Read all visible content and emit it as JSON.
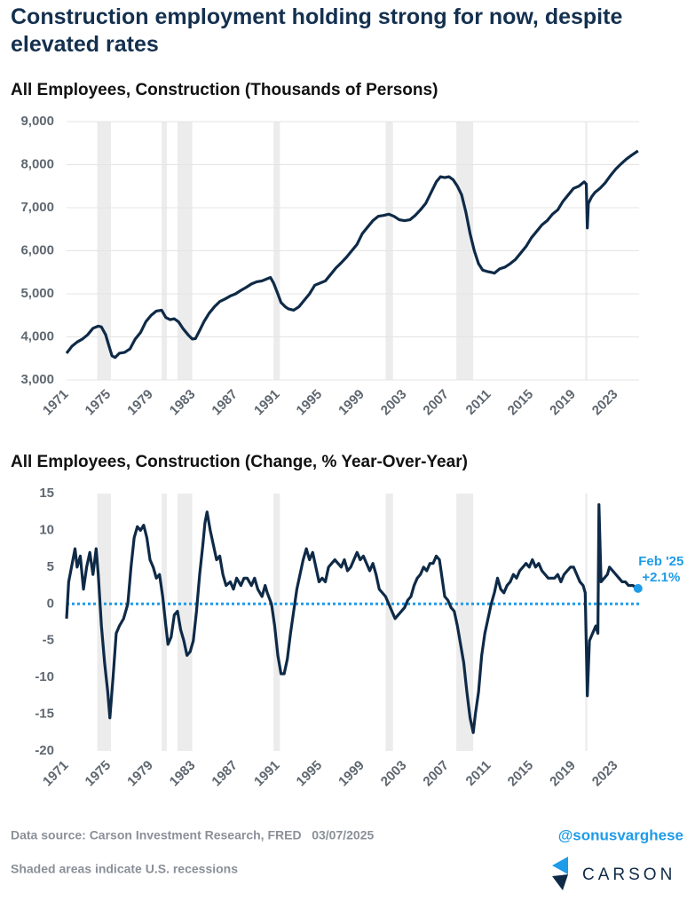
{
  "header": {
    "title": "Construction employment holding strong for now, despite elevated rates"
  },
  "chart_data": [
    {
      "type": "line",
      "title": "All Employees, Construction (Thousands of Persons)",
      "xlim": [
        1971,
        2025.2
      ],
      "xticks": [
        1971,
        1975,
        1979,
        1983,
        1987,
        1991,
        1995,
        1999,
        2003,
        2007,
        2011,
        2015,
        2019,
        2023
      ],
      "ylim": [
        3000,
        9000
      ],
      "yticks": [
        {
          "value": 3000,
          "label": "3,000"
        },
        {
          "value": 4000,
          "label": "4,000"
        },
        {
          "value": 5000,
          "label": "5,000"
        },
        {
          "value": 6000,
          "label": "6,000"
        },
        {
          "value": 7000,
          "label": "7,000"
        },
        {
          "value": 8000,
          "label": "8,000"
        },
        {
          "value": 9000,
          "label": "9,000"
        }
      ],
      "grid": true,
      "color": "#0e2a47",
      "recessions": [
        [
          1973.9,
          1975.2
        ],
        [
          1980.0,
          1980.5
        ],
        [
          1981.5,
          1982.9
        ],
        [
          1990.6,
          1991.2
        ],
        [
          2001.2,
          2001.9
        ],
        [
          2007.9,
          2009.5
        ],
        [
          2020.1,
          2020.3
        ]
      ],
      "x": [
        1971.0,
        1971.5,
        1972.0,
        1972.5,
        1973.0,
        1973.5,
        1974.0,
        1974.3,
        1974.7,
        1975.0,
        1975.3,
        1975.6,
        1976.0,
        1976.5,
        1977.0,
        1977.5,
        1978.0,
        1978.5,
        1979.0,
        1979.5,
        1980.0,
        1980.4,
        1980.8,
        1981.2,
        1981.6,
        1982.0,
        1982.5,
        1982.9,
        1983.2,
        1983.6,
        1984.0,
        1984.5,
        1985.0,
        1985.5,
        1986.0,
        1986.5,
        1987.0,
        1987.5,
        1988.0,
        1988.5,
        1989.0,
        1989.5,
        1990.0,
        1990.3,
        1990.6,
        1991.0,
        1991.3,
        1991.7,
        1992.0,
        1992.5,
        1993.0,
        1993.5,
        1994.0,
        1994.5,
        1995.0,
        1995.5,
        1996.0,
        1996.5,
        1997.0,
        1997.5,
        1998.0,
        1998.5,
        1999.0,
        1999.5,
        2000.0,
        2000.5,
        2001.0,
        2001.5,
        2002.0,
        2002.5,
        2003.0,
        2003.5,
        2004.0,
        2004.5,
        2005.0,
        2005.5,
        2006.0,
        2006.4,
        2006.8,
        2007.2,
        2007.6,
        2008.0,
        2008.4,
        2008.8,
        2009.2,
        2009.6,
        2010.0,
        2010.4,
        2010.8,
        2011.2,
        2011.5,
        2012.0,
        2012.5,
        2013.0,
        2013.5,
        2014.0,
        2014.5,
        2015.0,
        2015.5,
        2016.0,
        2016.5,
        2017.0,
        2017.5,
        2018.0,
        2018.5,
        2019.0,
        2019.5,
        2020.0,
        2020.2,
        2020.3,
        2020.4,
        2020.7,
        2021.0,
        2021.5,
        2022.0,
        2022.5,
        2023.0,
        2023.5,
        2024.0,
        2024.5,
        2025.1
      ],
      "values": [
        3620,
        3780,
        3880,
        3950,
        4050,
        4200,
        4250,
        4230,
        4050,
        3800,
        3560,
        3520,
        3620,
        3640,
        3720,
        3950,
        4100,
        4350,
        4500,
        4600,
        4620,
        4450,
        4400,
        4420,
        4350,
        4200,
        4050,
        3950,
        3960,
        4150,
        4350,
        4550,
        4700,
        4820,
        4880,
        4950,
        5000,
        5080,
        5150,
        5230,
        5280,
        5300,
        5350,
        5380,
        5250,
        5000,
        4800,
        4700,
        4650,
        4620,
        4700,
        4850,
        5000,
        5200,
        5250,
        5300,
        5450,
        5600,
        5720,
        5850,
        6000,
        6150,
        6400,
        6550,
        6700,
        6800,
        6820,
        6850,
        6800,
        6720,
        6700,
        6720,
        6820,
        6950,
        7100,
        7350,
        7600,
        7720,
        7700,
        7720,
        7650,
        7500,
        7300,
        6900,
        6400,
        6000,
        5700,
        5550,
        5520,
        5500,
        5480,
        5580,
        5620,
        5700,
        5800,
        5950,
        6100,
        6300,
        6450,
        6600,
        6700,
        6850,
        6950,
        7150,
        7300,
        7450,
        7500,
        7600,
        7550,
        6530,
        7100,
        7250,
        7350,
        7450,
        7580,
        7750,
        7900,
        8020,
        8130,
        8220,
        8320
      ]
    },
    {
      "type": "line",
      "title": "All Employees, Construction (Change, % Year-Over-Year)",
      "xlim": [
        1971,
        2025.2
      ],
      "xticks": [
        1971,
        1975,
        1979,
        1983,
        1987,
        1991,
        1995,
        1999,
        2003,
        2007,
        2011,
        2015,
        2019,
        2023
      ],
      "ylim": [
        -20,
        15
      ],
      "yticks": [
        -20,
        -15,
        -10,
        -5,
        0,
        5,
        10,
        15
      ],
      "grid": false,
      "color": "#0e2a47",
      "zero_line": {
        "value": 0,
        "color": "#1e9be9"
      },
      "recessions": [
        [
          1973.9,
          1975.2
        ],
        [
          1980.0,
          1980.5
        ],
        [
          1981.5,
          1982.9
        ],
        [
          1990.6,
          1991.2
        ],
        [
          2001.2,
          2001.9
        ],
        [
          2007.9,
          2009.5
        ],
        [
          2020.1,
          2020.3
        ]
      ],
      "annotation": {
        "label": "Feb '25",
        "value_label": "+2.1%",
        "color": "#1e9be9"
      },
      "x": [
        1971.0,
        1971.2,
        1971.6,
        1971.8,
        1972.0,
        1972.3,
        1972.6,
        1972.9,
        1973.2,
        1973.5,
        1973.8,
        1974.0,
        1974.3,
        1974.6,
        1974.9,
        1975.1,
        1975.4,
        1975.7,
        1976.0,
        1976.4,
        1976.8,
        1977.1,
        1977.4,
        1977.7,
        1978.0,
        1978.3,
        1978.6,
        1978.9,
        1979.2,
        1979.5,
        1979.8,
        1980.1,
        1980.4,
        1980.6,
        1980.9,
        1981.2,
        1981.5,
        1981.8,
        1982.1,
        1982.4,
        1982.7,
        1983.0,
        1983.3,
        1983.6,
        1983.9,
        1984.1,
        1984.3,
        1984.6,
        1984.9,
        1985.2,
        1985.5,
        1985.8,
        1986.1,
        1986.5,
        1986.8,
        1987.1,
        1987.5,
        1987.8,
        1988.1,
        1988.5,
        1988.8,
        1989.1,
        1989.5,
        1989.8,
        1990.0,
        1990.4,
        1990.7,
        1991.0,
        1991.3,
        1991.6,
        1991.9,
        1992.2,
        1992.5,
        1992.8,
        1993.1,
        1993.4,
        1993.7,
        1994.0,
        1994.3,
        1994.6,
        1994.9,
        1995.2,
        1995.5,
        1995.8,
        1996.1,
        1996.4,
        1996.7,
        1997.0,
        1997.3,
        1997.6,
        1997.9,
        1998.2,
        1998.5,
        1998.8,
        1999.1,
        1999.4,
        1999.7,
        2000.0,
        2000.3,
        2000.6,
        2000.9,
        2001.2,
        2001.5,
        2001.8,
        2002.1,
        2002.4,
        2002.7,
        2003.0,
        2003.3,
        2003.6,
        2003.9,
        2004.2,
        2004.5,
        2004.8,
        2005.1,
        2005.4,
        2005.7,
        2006.0,
        2006.3,
        2006.5,
        2006.8,
        2007.1,
        2007.4,
        2007.7,
        2008.0,
        2008.3,
        2008.6,
        2008.9,
        2009.2,
        2009.5,
        2009.7,
        2010.0,
        2010.3,
        2010.6,
        2010.9,
        2011.2,
        2011.5,
        2011.8,
        2012.1,
        2012.4,
        2012.7,
        2013.0,
        2013.3,
        2013.6,
        2013.9,
        2014.2,
        2014.5,
        2014.8,
        2015.1,
        2015.4,
        2015.7,
        2016.0,
        2016.3,
        2016.6,
        2016.9,
        2017.2,
        2017.5,
        2017.8,
        2018.1,
        2018.4,
        2018.7,
        2019.0,
        2019.3,
        2019.6,
        2019.9,
        2020.1,
        2020.3,
        2020.5,
        2020.8,
        2021.1,
        2021.3,
        2021.4,
        2021.6,
        2021.9,
        2022.2,
        2022.4,
        2022.7,
        2023.0,
        2023.3,
        2023.6,
        2023.9,
        2024.2,
        2024.6,
        2025.1
      ],
      "values": [
        -2,
        3,
        6,
        7.5,
        5,
        6.5,
        2,
        5,
        7,
        4,
        7.5,
        4,
        -3,
        -8,
        -12,
        -15.5,
        -10,
        -4,
        -3,
        -2,
        0,
        5,
        9,
        10.5,
        10,
        10.7,
        9,
        6,
        5,
        3.5,
        4,
        1,
        -3,
        -5.5,
        -4.5,
        -1.5,
        -1,
        -3.5,
        -5,
        -7,
        -6.5,
        -5,
        -1,
        4,
        8,
        11,
        12.5,
        10,
        8,
        6,
        6.5,
        4,
        2.5,
        3,
        2,
        3.5,
        2.5,
        3.5,
        3.5,
        2.5,
        3.5,
        2,
        1,
        2.5,
        1.5,
        0,
        -3,
        -7,
        -9.5,
        -9.5,
        -7.5,
        -4,
        -1,
        2,
        4,
        6,
        7.5,
        6,
        7,
        5,
        3,
        3.5,
        3,
        5,
        5.5,
        6,
        5.5,
        5,
        6,
        4.5,
        5,
        6,
        7,
        6,
        6.5,
        5.5,
        4.5,
        5.5,
        4,
        2,
        1.5,
        1,
        0,
        -1,
        -2,
        -1.5,
        -1,
        -0.5,
        0.5,
        1,
        2.5,
        3.5,
        4,
        5,
        4.5,
        5.5,
        5.5,
        6.5,
        6,
        4,
        1,
        0.5,
        -0.5,
        -1,
        -3,
        -5.5,
        -8,
        -12,
        -15.5,
        -17.5,
        -15,
        -12,
        -7,
        -4,
        -2,
        0,
        1.5,
        3.5,
        2,
        1.5,
        2.5,
        3,
        4,
        3.5,
        4.5,
        5,
        5.5,
        5,
        6,
        5,
        5.5,
        4.5,
        4,
        3.5,
        3.5,
        3.5,
        4,
        3,
        4,
        4.5,
        5,
        5,
        4,
        3,
        2.5,
        1.5,
        -12.5,
        -5,
        -4,
        -3,
        -4,
        13.5,
        3,
        3.5,
        4,
        5,
        4.5,
        4,
        3.5,
        3,
        3,
        2.5,
        2.5,
        2.1
      ]
    }
  ],
  "footer": {
    "source": "Data source: Carson Investment Research, FRED   03/07/2025",
    "note": "Shaded areas indicate U.S. recessions",
    "handle": "@sonusvarghese",
    "logo": "CARSON"
  }
}
